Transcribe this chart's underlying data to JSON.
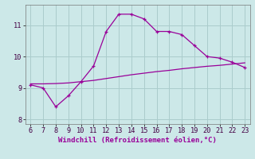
{
  "xlabel": "Windchill (Refroidissement éolien,°C)",
  "x": [
    6,
    7,
    8,
    9,
    10,
    11,
    12,
    13,
    14,
    15,
    16,
    17,
    18,
    19,
    20,
    21,
    22,
    23
  ],
  "y_curve": [
    9.1,
    9.0,
    8.4,
    8.75,
    9.2,
    9.7,
    10.8,
    11.35,
    11.35,
    11.2,
    10.8,
    10.8,
    10.7,
    10.35,
    10.0,
    9.95,
    9.82,
    9.65
  ],
  "y_line": [
    9.13,
    9.13,
    9.14,
    9.16,
    9.2,
    9.24,
    9.3,
    9.36,
    9.42,
    9.47,
    9.52,
    9.56,
    9.61,
    9.65,
    9.69,
    9.72,
    9.76,
    9.8
  ],
  "line_color": "#990099",
  "bg_color": "#cce8e8",
  "grid_color": "#aacccc",
  "ylim": [
    7.85,
    11.65
  ],
  "xlim": [
    5.6,
    23.4
  ],
  "yticks": [
    8,
    9,
    10,
    11
  ],
  "xticks": [
    6,
    7,
    8,
    9,
    10,
    11,
    12,
    13,
    14,
    15,
    16,
    17,
    18,
    19,
    20,
    21,
    22,
    23
  ],
  "xlabel_color": "#990099",
  "xlabel_fontsize": 6.5,
  "tick_fontsize": 6.2,
  "marker_size": 3.5,
  "line_width": 0.9
}
